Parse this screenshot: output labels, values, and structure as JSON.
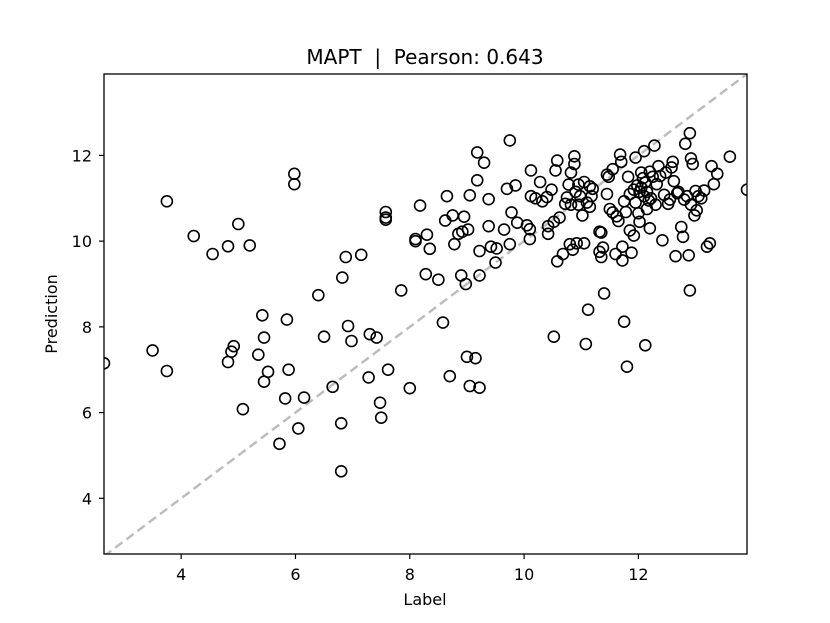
{
  "chart_data": {
    "type": "scatter",
    "title": "MAPT  |  Pearson: 0.643",
    "xlabel": "Label",
    "ylabel": "Prediction",
    "xlim": [
      2.65,
      13.9
    ],
    "ylim": [
      2.7,
      13.9
    ],
    "x_ticks": [
      4,
      6,
      8,
      10,
      12
    ],
    "y_ticks": [
      4,
      6,
      8,
      10,
      12
    ],
    "grid": false,
    "legend": "none",
    "reference_line": {
      "style": "dashed",
      "color": "#bdbdbd",
      "from": [
        2.65,
        2.65
      ],
      "to": [
        13.9,
        13.9
      ]
    },
    "marker": {
      "shape": "circle",
      "fill": "none",
      "edge_color": "#000000"
    },
    "points": [
      [
        2.65,
        7.15
      ],
      [
        3.5,
        7.45
      ],
      [
        3.75,
        6.97
      ],
      [
        3.75,
        10.93
      ],
      [
        4.22,
        10.12
      ],
      [
        4.55,
        9.7
      ],
      [
        4.82,
        9.88
      ],
      [
        4.82,
        7.18
      ],
      [
        4.88,
        7.42
      ],
      [
        4.92,
        7.55
      ],
      [
        5.0,
        10.4
      ],
      [
        5.08,
        6.08
      ],
      [
        5.2,
        9.9
      ],
      [
        5.35,
        7.35
      ],
      [
        5.42,
        8.27
      ],
      [
        5.45,
        7.75
      ],
      [
        5.45,
        6.72
      ],
      [
        5.52,
        6.95
      ],
      [
        5.72,
        5.27
      ],
      [
        5.82,
        6.33
      ],
      [
        5.85,
        8.17
      ],
      [
        5.88,
        7.0
      ],
      [
        5.98,
        11.57
      ],
      [
        5.98,
        11.33
      ],
      [
        6.05,
        5.63
      ],
      [
        6.15,
        6.35
      ],
      [
        6.4,
        8.74
      ],
      [
        6.5,
        7.77
      ],
      [
        6.65,
        6.6
      ],
      [
        6.8,
        4.63
      ],
      [
        6.8,
        5.75
      ],
      [
        6.82,
        9.15
      ],
      [
        6.88,
        9.63
      ],
      [
        6.92,
        8.02
      ],
      [
        6.98,
        7.67
      ],
      [
        7.15,
        9.68
      ],
      [
        7.28,
        6.82
      ],
      [
        7.3,
        7.83
      ],
      [
        7.42,
        7.75
      ],
      [
        7.48,
        6.23
      ],
      [
        7.5,
        5.88
      ],
      [
        7.58,
        10.68
      ],
      [
        7.58,
        10.5
      ],
      [
        7.58,
        10.55
      ],
      [
        7.62,
        7.0
      ],
      [
        7.85,
        8.85
      ],
      [
        8.0,
        6.57
      ],
      [
        8.1,
        10.05
      ],
      [
        8.1,
        10.0
      ],
      [
        8.18,
        10.83
      ],
      [
        8.28,
        9.23
      ],
      [
        8.3,
        10.15
      ],
      [
        8.35,
        9.82
      ],
      [
        8.5,
        9.1
      ],
      [
        8.58,
        8.1
      ],
      [
        8.62,
        10.48
      ],
      [
        8.65,
        11.05
      ],
      [
        8.7,
        6.85
      ],
      [
        8.75,
        10.6
      ],
      [
        8.78,
        9.93
      ],
      [
        8.85,
        10.17
      ],
      [
        8.9,
        9.2
      ],
      [
        8.92,
        10.22
      ],
      [
        8.95,
        10.57
      ],
      [
        8.98,
        9.0
      ],
      [
        9.0,
        7.3
      ],
      [
        9.02,
        10.27
      ],
      [
        9.05,
        11.07
      ],
      [
        9.05,
        6.62
      ],
      [
        9.15,
        7.27
      ],
      [
        9.18,
        11.42
      ],
      [
        9.18,
        12.07
      ],
      [
        9.22,
        6.58
      ],
      [
        9.22,
        9.77
      ],
      [
        9.22,
        9.2
      ],
      [
        9.3,
        11.83
      ],
      [
        9.38,
        10.35
      ],
      [
        9.38,
        10.98
      ],
      [
        9.42,
        9.87
      ],
      [
        9.5,
        9.5
      ],
      [
        9.52,
        9.83
      ],
      [
        9.65,
        10.27
      ],
      [
        9.7,
        11.22
      ],
      [
        9.75,
        12.35
      ],
      [
        9.75,
        9.93
      ],
      [
        9.78,
        10.67
      ],
      [
        9.85,
        11.3
      ],
      [
        9.88,
        10.43
      ],
      [
        10.05,
        10.37
      ],
      [
        10.1,
        10.28
      ],
      [
        10.1,
        10.05
      ],
      [
        10.12,
        11.65
      ],
      [
        10.12,
        11.05
      ],
      [
        10.2,
        11.0
      ],
      [
        10.28,
        11.38
      ],
      [
        10.32,
        10.93
      ],
      [
        10.4,
        11.03
      ],
      [
        10.42,
        10.35
      ],
      [
        10.42,
        10.17
      ],
      [
        10.48,
        11.2
      ],
      [
        10.52,
        10.45
      ],
      [
        10.52,
        7.77
      ],
      [
        10.55,
        11.65
      ],
      [
        10.58,
        9.53
      ],
      [
        10.58,
        11.88
      ],
      [
        10.62,
        10.55
      ],
      [
        10.68,
        9.7
      ],
      [
        10.72,
        10.87
      ],
      [
        10.75,
        11.02
      ],
      [
        10.78,
        11.32
      ],
      [
        10.8,
        9.93
      ],
      [
        10.82,
        11.6
      ],
      [
        10.82,
        10.85
      ],
      [
        10.85,
        9.8
      ],
      [
        10.88,
        11.98
      ],
      [
        10.88,
        11.8
      ],
      [
        10.9,
        11.15
      ],
      [
        10.92,
        9.95
      ],
      [
        10.95,
        11.32
      ],
      [
        10.95,
        10.85
      ],
      [
        10.98,
        11.05
      ],
      [
        11.02,
        10.6
      ],
      [
        11.05,
        11.38
      ],
      [
        11.05,
        9.95
      ],
      [
        11.08,
        7.6
      ],
      [
        11.1,
        10.9
      ],
      [
        11.12,
        8.4
      ],
      [
        11.15,
        11.28
      ],
      [
        11.15,
        10.8
      ],
      [
        11.18,
        11.05
      ],
      [
        11.2,
        11.22
      ],
      [
        11.32,
        9.75
      ],
      [
        11.32,
        10.22
      ],
      [
        11.35,
        10.2
      ],
      [
        11.35,
        9.63
      ],
      [
        11.38,
        9.85
      ],
      [
        11.4,
        8.78
      ],
      [
        11.45,
        11.1
      ],
      [
        11.45,
        11.55
      ],
      [
        11.48,
        11.5
      ],
      [
        11.5,
        10.75
      ],
      [
        11.55,
        10.67
      ],
      [
        11.55,
        11.68
      ],
      [
        11.6,
        9.7
      ],
      [
        11.62,
        10.58
      ],
      [
        11.65,
        10.47
      ],
      [
        11.68,
        12.02
      ],
      [
        11.7,
        11.85
      ],
      [
        11.72,
        9.55
      ],
      [
        11.72,
        9.87
      ],
      [
        11.75,
        8.12
      ],
      [
        11.75,
        10.93
      ],
      [
        11.78,
        10.68
      ],
      [
        11.8,
        7.07
      ],
      [
        11.82,
        11.5
      ],
      [
        11.85,
        10.25
      ],
      [
        11.85,
        11.1
      ],
      [
        11.88,
        9.73
      ],
      [
        11.92,
        10.13
      ],
      [
        11.92,
        11.2
      ],
      [
        11.95,
        10.9
      ],
      [
        11.95,
        11.95
      ],
      [
        11.98,
        11.3
      ],
      [
        12.0,
        10.65
      ],
      [
        12.02,
        11.15
      ],
      [
        12.02,
        10.45
      ],
      [
        12.05,
        11.6
      ],
      [
        12.05,
        11.25
      ],
      [
        12.08,
        11.47
      ],
      [
        12.1,
        11.05
      ],
      [
        12.1,
        12.1
      ],
      [
        12.12,
        11.37
      ],
      [
        12.12,
        7.57
      ],
      [
        12.15,
        11.15
      ],
      [
        12.15,
        10.75
      ],
      [
        12.18,
        10.95
      ],
      [
        12.2,
        11.62
      ],
      [
        12.2,
        10.3
      ],
      [
        12.22,
        11.0
      ],
      [
        12.25,
        11.5
      ],
      [
        12.28,
        12.23
      ],
      [
        12.3,
        10.85
      ],
      [
        12.32,
        11.33
      ],
      [
        12.35,
        11.75
      ],
      [
        12.38,
        11.52
      ],
      [
        12.42,
        10.02
      ],
      [
        12.45,
        11.08
      ],
      [
        12.48,
        11.6
      ],
      [
        12.52,
        10.87
      ],
      [
        12.55,
        10.97
      ],
      [
        12.58,
        11.72
      ],
      [
        12.6,
        11.85
      ],
      [
        12.62,
        11.4
      ],
      [
        12.65,
        9.65
      ],
      [
        12.68,
        11.12
      ],
      [
        12.7,
        11.15
      ],
      [
        12.75,
        10.33
      ],
      [
        12.78,
        10.1
      ],
      [
        12.8,
        10.97
      ],
      [
        12.82,
        12.27
      ],
      [
        12.85,
        11.05
      ],
      [
        12.88,
        9.67
      ],
      [
        12.9,
        8.85
      ],
      [
        12.9,
        12.52
      ],
      [
        12.92,
        11.93
      ],
      [
        12.92,
        10.85
      ],
      [
        12.95,
        11.8
      ],
      [
        12.98,
        10.6
      ],
      [
        13.0,
        11.17
      ],
      [
        13.02,
        10.72
      ],
      [
        13.05,
        11.05
      ],
      [
        13.1,
        11.0
      ],
      [
        13.15,
        11.18
      ],
      [
        13.2,
        9.87
      ],
      [
        13.25,
        9.95
      ],
      [
        13.28,
        11.75
      ],
      [
        13.32,
        11.33
      ],
      [
        13.38,
        11.57
      ],
      [
        13.6,
        11.97
      ],
      [
        13.9,
        11.2
      ]
    ]
  }
}
